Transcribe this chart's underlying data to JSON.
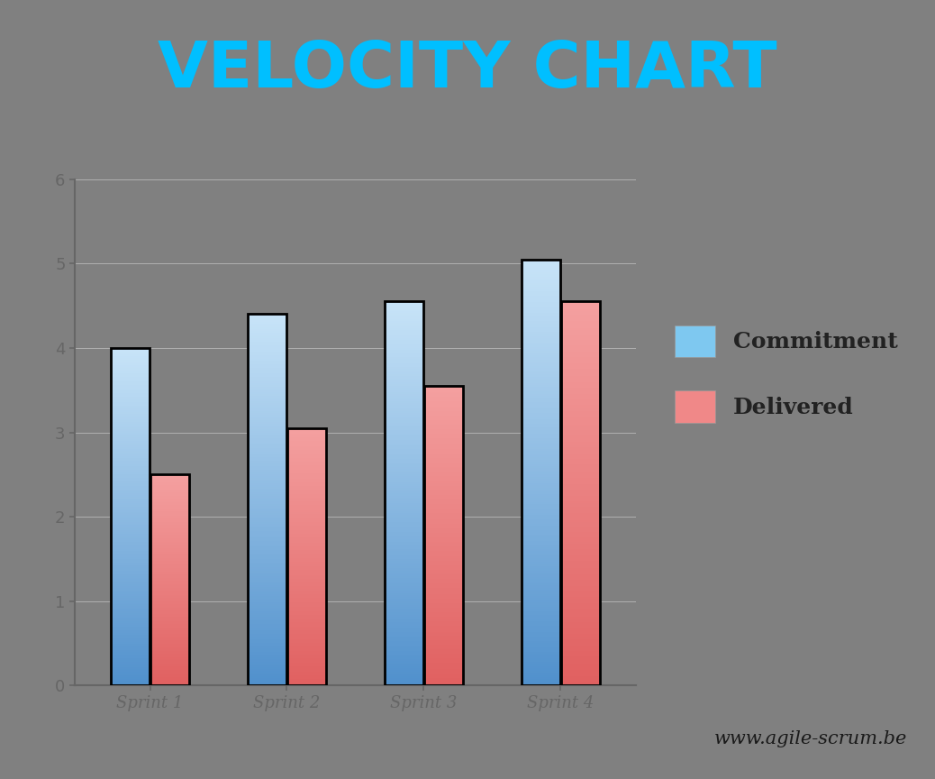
{
  "title": "VELOCITY CHART",
  "title_color": "#00BFFF",
  "background_color": "#808080",
  "plot_bg_color": "#808080",
  "categories": [
    "Sprint 1",
    "Sprint 2",
    "Sprint 3",
    "Sprint 4"
  ],
  "commitment": [
    4.0,
    4.4,
    4.55,
    5.05
  ],
  "delivered": [
    2.5,
    3.05,
    3.55,
    4.55
  ],
  "commit_color_top": "#C8E4F8",
  "commit_color_bottom": "#5090CC",
  "deliv_color_top": "#F4A0A0",
  "deliv_color_bottom": "#E06060",
  "bar_edge_color": "#000000",
  "bar_edge_width": 2.0,
  "ylim": [
    0,
    6
  ],
  "yticks": [
    0,
    1,
    2,
    3,
    4,
    5,
    6
  ],
  "grid_color": "#B0B0B0",
  "grid_linewidth": 0.7,
  "legend_labels": [
    "Commitment",
    "Delivered"
  ],
  "legend_commit_color": "#7EC8F0",
  "legend_deliv_color": "#F08888",
  "watermark": "www.agile-scrum.be",
  "watermark_color": "#1a1a1a",
  "axis_color": "#666666",
  "tick_label_color": "#222222",
  "xtick_fontsize": 13,
  "ytick_fontsize": 13,
  "title_fontsize": 52,
  "legend_fontsize": 18,
  "watermark_fontsize": 15,
  "bar_width": 0.28,
  "bar_gap": 0.01
}
